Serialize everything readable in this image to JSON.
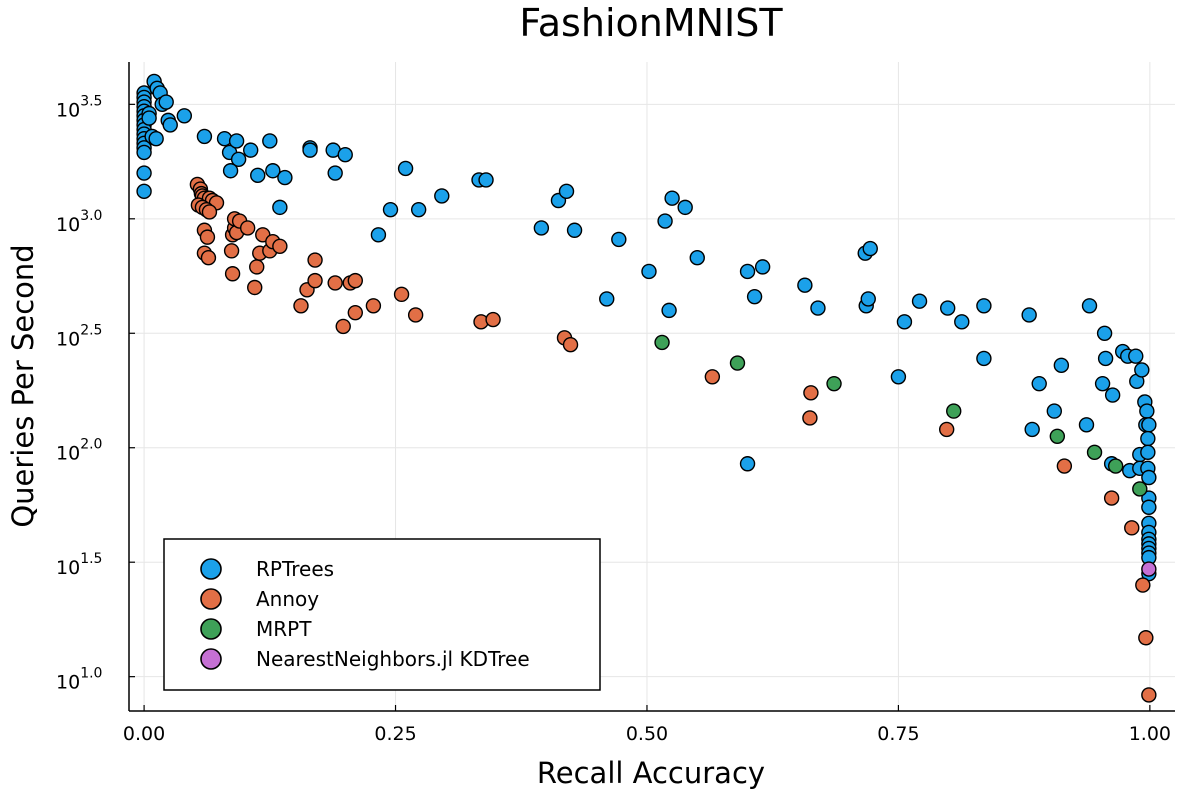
{
  "chart_data": {
    "type": "scatter",
    "title": "FashionMNIST",
    "xlabel": "Recall Accuracy",
    "ylabel": "Queries Per Second",
    "xlim": [
      -0.015,
      1.025
    ],
    "ylim": [
      0.85,
      3.685
    ],
    "y_scale": "log10",
    "xticks": [
      0.0,
      0.25,
      0.5,
      0.75,
      1.0
    ],
    "xtick_labels": [
      "0.00",
      "0.25",
      "0.50",
      "0.75",
      "1.00"
    ],
    "yticks": [
      1.0,
      1.5,
      2.0,
      2.5,
      3.0,
      3.5
    ],
    "ytick_base": "10",
    "ytick_exponents": [
      "1.0",
      "1.5",
      "2.0",
      "2.5",
      "3.0",
      "3.5"
    ],
    "grid": true,
    "legend_position": "bottom-left",
    "series": [
      {
        "name": "RPTrees",
        "color": "#1ba1ea",
        "points": [
          [
            0.0,
            3.55
          ],
          [
            0.0,
            3.53
          ],
          [
            0.0,
            3.51
          ],
          [
            0.0,
            3.49
          ],
          [
            0.0,
            3.47
          ],
          [
            0.0,
            3.45
          ],
          [
            0.0,
            3.43
          ],
          [
            0.0,
            3.41
          ],
          [
            0.0,
            3.39
          ],
          [
            0.0,
            3.37
          ],
          [
            0.0,
            3.35
          ],
          [
            0.0,
            3.33
          ],
          [
            0.0,
            3.31
          ],
          [
            0.0,
            3.29
          ],
          [
            0.0,
            3.2
          ],
          [
            0.0,
            3.12
          ],
          [
            0.005,
            3.46
          ],
          [
            0.005,
            3.44
          ],
          [
            0.008,
            3.36
          ],
          [
            0.01,
            3.6
          ],
          [
            0.013,
            3.57
          ],
          [
            0.016,
            3.55
          ],
          [
            0.018,
            3.5
          ],
          [
            0.022,
            3.51
          ],
          [
            0.024,
            3.43
          ],
          [
            0.026,
            3.41
          ],
          [
            0.04,
            3.45
          ],
          [
            0.012,
            3.35
          ],
          [
            0.06,
            3.36
          ],
          [
            0.08,
            3.35
          ],
          [
            0.085,
            3.29
          ],
          [
            0.092,
            3.34
          ],
          [
            0.094,
            3.26
          ],
          [
            0.086,
            3.21
          ],
          [
            0.106,
            3.3
          ],
          [
            0.113,
            3.19
          ],
          [
            0.125,
            3.34
          ],
          [
            0.128,
            3.21
          ],
          [
            0.14,
            3.18
          ],
          [
            0.165,
            3.31
          ],
          [
            0.165,
            3.3
          ],
          [
            0.188,
            3.3
          ],
          [
            0.19,
            3.2
          ],
          [
            0.2,
            3.28
          ],
          [
            0.135,
            3.05
          ],
          [
            0.245,
            3.04
          ],
          [
            0.26,
            3.22
          ],
          [
            0.233,
            2.93
          ],
          [
            0.273,
            3.04
          ],
          [
            0.296,
            3.1
          ],
          [
            0.333,
            3.17
          ],
          [
            0.34,
            3.17
          ],
          [
            0.395,
            2.96
          ],
          [
            0.412,
            3.08
          ],
          [
            0.42,
            3.12
          ],
          [
            0.428,
            2.95
          ],
          [
            0.472,
            2.91
          ],
          [
            0.46,
            2.65
          ],
          [
            0.502,
            2.77
          ],
          [
            0.518,
            2.99
          ],
          [
            0.525,
            3.09
          ],
          [
            0.538,
            3.05
          ],
          [
            0.522,
            2.6
          ],
          [
            0.55,
            2.83
          ],
          [
            0.6,
            2.77
          ],
          [
            0.607,
            2.66
          ],
          [
            0.615,
            2.79
          ],
          [
            0.6,
            1.93
          ],
          [
            0.657,
            2.71
          ],
          [
            0.67,
            2.61
          ],
          [
            0.717,
            2.85
          ],
          [
            0.722,
            2.87
          ],
          [
            0.718,
            2.62
          ],
          [
            0.72,
            2.65
          ],
          [
            0.75,
            2.31
          ],
          [
            0.756,
            2.55
          ],
          [
            0.771,
            2.64
          ],
          [
            0.799,
            2.61
          ],
          [
            0.813,
            2.55
          ],
          [
            0.835,
            2.62
          ],
          [
            0.835,
            2.39
          ],
          [
            0.88,
            2.58
          ],
          [
            0.883,
            2.08
          ],
          [
            0.89,
            2.28
          ],
          [
            0.905,
            2.16
          ],
          [
            0.912,
            2.36
          ],
          [
            0.937,
            2.1
          ],
          [
            0.94,
            2.62
          ],
          [
            0.953,
            2.28
          ],
          [
            0.955,
            2.5
          ],
          [
            0.956,
            2.39
          ],
          [
            0.963,
            2.23
          ],
          [
            0.962,
            1.93
          ],
          [
            0.973,
            2.42
          ],
          [
            0.978,
            2.4
          ],
          [
            0.98,
            1.9
          ],
          [
            0.986,
            2.4
          ],
          [
            0.987,
            2.29
          ],
          [
            0.99,
            1.97
          ],
          [
            0.992,
            2.34
          ],
          [
            0.99,
            1.91
          ],
          [
            0.995,
            2.2
          ],
          [
            0.997,
            2.16
          ],
          [
            0.996,
            2.1
          ],
          [
            0.999,
            2.1
          ],
          [
            0.998,
            2.04
          ],
          [
            0.998,
            1.98
          ],
          [
            0.998,
            1.91
          ],
          [
            0.999,
            1.87
          ],
          [
            0.999,
            1.78
          ],
          [
            0.999,
            1.74
          ],
          [
            0.999,
            1.67
          ],
          [
            0.999,
            1.63
          ],
          [
            0.999,
            1.6
          ],
          [
            0.999,
            1.58
          ],
          [
            0.999,
            1.56
          ],
          [
            0.999,
            1.54
          ],
          [
            0.999,
            1.52
          ],
          [
            0.999,
            1.45
          ]
        ]
      },
      {
        "name": "Annoy",
        "color": "#e26f46",
        "points": [
          [
            0.053,
            3.15
          ],
          [
            0.056,
            3.13
          ],
          [
            0.057,
            3.11
          ],
          [
            0.058,
            3.1
          ],
          [
            0.06,
            3.09
          ],
          [
            0.065,
            3.09
          ],
          [
            0.068,
            3.08
          ],
          [
            0.072,
            3.07
          ],
          [
            0.054,
            3.06
          ],
          [
            0.058,
            3.05
          ],
          [
            0.062,
            3.04
          ],
          [
            0.065,
            3.03
          ],
          [
            0.06,
            2.95
          ],
          [
            0.063,
            2.92
          ],
          [
            0.06,
            2.85
          ],
          [
            0.064,
            2.83
          ],
          [
            0.087,
            2.86
          ],
          [
            0.088,
            2.76
          ],
          [
            0.088,
            2.93
          ],
          [
            0.09,
            2.96
          ],
          [
            0.092,
            2.94
          ],
          [
            0.09,
            3.0
          ],
          [
            0.095,
            2.99
          ],
          [
            0.103,
            2.96
          ],
          [
            0.11,
            2.7
          ],
          [
            0.112,
            2.79
          ],
          [
            0.115,
            2.85
          ],
          [
            0.118,
            2.93
          ],
          [
            0.125,
            2.86
          ],
          [
            0.128,
            2.9
          ],
          [
            0.135,
            2.88
          ],
          [
            0.156,
            2.62
          ],
          [
            0.162,
            2.69
          ],
          [
            0.17,
            2.73
          ],
          [
            0.17,
            2.82
          ],
          [
            0.19,
            2.72
          ],
          [
            0.198,
            2.53
          ],
          [
            0.205,
            2.72
          ],
          [
            0.21,
            2.73
          ],
          [
            0.21,
            2.59
          ],
          [
            0.228,
            2.62
          ],
          [
            0.256,
            2.67
          ],
          [
            0.27,
            2.58
          ],
          [
            0.335,
            2.55
          ],
          [
            0.347,
            2.56
          ],
          [
            0.418,
            2.48
          ],
          [
            0.424,
            2.45
          ],
          [
            0.565,
            2.31
          ],
          [
            0.663,
            2.24
          ],
          [
            0.662,
            2.13
          ],
          [
            0.798,
            2.08
          ],
          [
            0.915,
            1.92
          ],
          [
            0.962,
            1.78
          ],
          [
            0.982,
            1.65
          ],
          [
            0.993,
            1.4
          ],
          [
            0.996,
            1.17
          ],
          [
            0.999,
            0.92
          ]
        ]
      },
      {
        "name": "MRPT",
        "color": "#3ea158",
        "points": [
          [
            0.515,
            2.46
          ],
          [
            0.59,
            2.37
          ],
          [
            0.686,
            2.28
          ],
          [
            0.805,
            2.16
          ],
          [
            0.908,
            2.05
          ],
          [
            0.945,
            1.98
          ],
          [
            0.966,
            1.92
          ],
          [
            0.99,
            1.82
          ]
        ]
      },
      {
        "name": "NearestNeighbors.jl KDTree",
        "color": "#c570d4",
        "points": [
          [
            0.999,
            1.47
          ]
        ]
      }
    ]
  }
}
